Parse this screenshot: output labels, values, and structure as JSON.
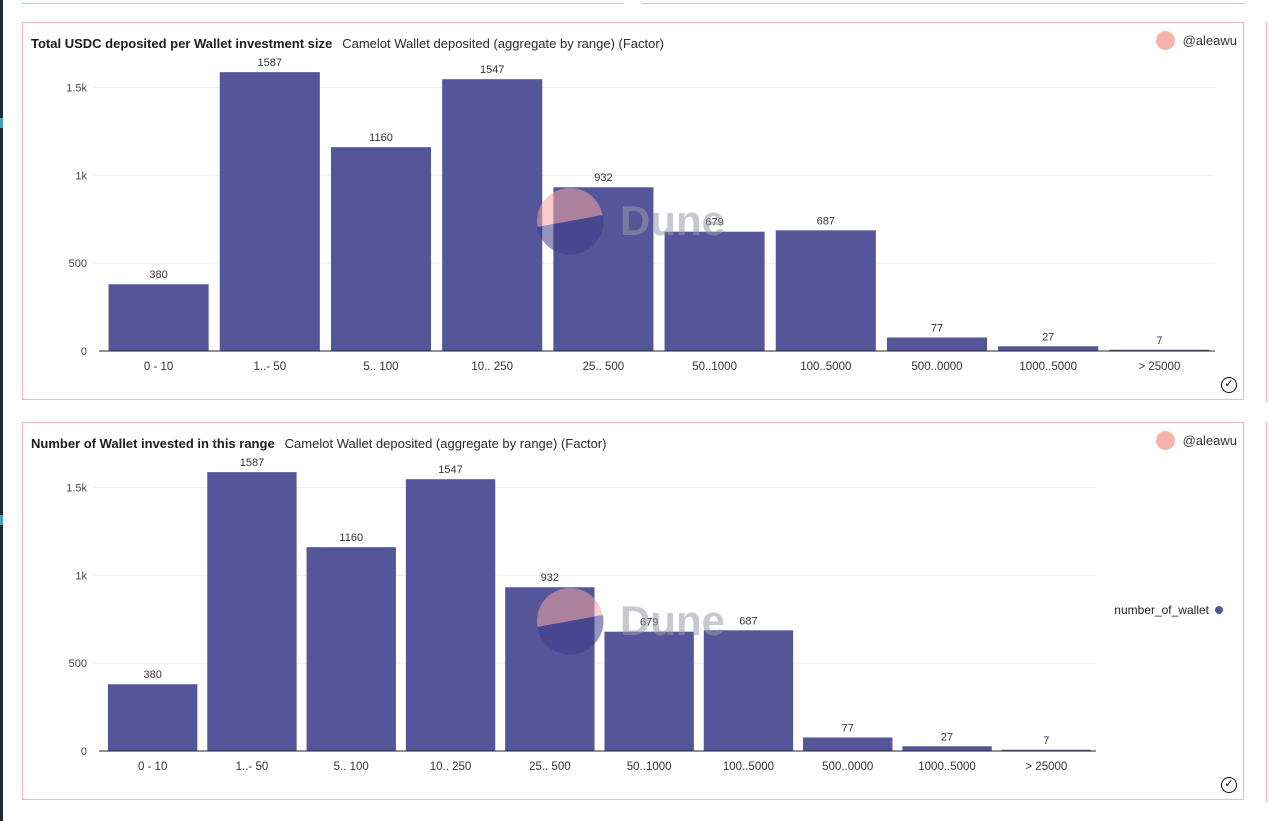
{
  "panels": [
    {
      "title": "Total USDC deposited per Wallet investment size",
      "subtitle": "Camelot Wallet deposited (aggregate by range) (Factor)",
      "author": "@aleawu",
      "watermark": "Dune",
      "legend_label": ""
    },
    {
      "title": "Number of Wallet invested in this range",
      "subtitle": "Camelot Wallet deposited (aggregate by range) (Factor)",
      "author": "@aleawu",
      "watermark": "Dune",
      "legend_label": "number_of_wallet"
    }
  ],
  "chart_data": [
    {
      "type": "bar",
      "title": "Total USDC deposited per Wallet investment size",
      "categories": [
        "0 - 10",
        "1..- 50",
        "5.. 100",
        "10.. 250",
        "25.. 500",
        "50..1000",
        "100..5000",
        "500..0000",
        "1000..5000",
        "> 25000"
      ],
      "series": [
        {
          "values": [
            380,
            1587,
            1160,
            1547,
            932,
            679,
            687,
            77,
            27,
            7
          ]
        }
      ],
      "ylim": [
        0,
        1700
      ],
      "yticks": [
        "0",
        "500",
        "1k",
        "1.5k"
      ],
      "ytick_values": [
        0,
        500,
        1000,
        1500
      ],
      "grid": true,
      "color": "#55559a"
    },
    {
      "type": "bar",
      "title": "Number of Wallet invested in this range",
      "categories": [
        "0 - 10",
        "1..- 50",
        "5.. 100",
        "10.. 250",
        "25.. 500",
        "50..1000",
        "100..5000",
        "500..0000",
        "1000..5000",
        "> 25000"
      ],
      "series": [
        {
          "name": "number_of_wallet",
          "values": [
            380,
            1587,
            1160,
            1547,
            932,
            679,
            687,
            77,
            27,
            7
          ]
        }
      ],
      "ylim": [
        0,
        1700
      ],
      "yticks": [
        "0",
        "500",
        "1k",
        "1.5k"
      ],
      "ytick_values": [
        0,
        500,
        1000,
        1500
      ],
      "grid": true,
      "legend": "right",
      "color": "#55559a"
    }
  ]
}
